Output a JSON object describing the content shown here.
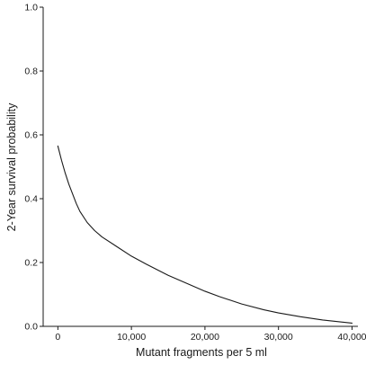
{
  "chart_data": {
    "type": "line",
    "title": "",
    "xlabel": "Mutant fragments per 5 ml",
    "ylabel": "2-Year survival probability",
    "xlim": [
      -2000,
      40800
    ],
    "ylim": [
      0,
      1.0
    ],
    "x_ticks": [
      0,
      10000,
      20000,
      30000,
      40000
    ],
    "x_tick_labels": [
      "0",
      "10,000",
      "20,000",
      "30,000",
      "40,000"
    ],
    "y_ticks": [
      0.0,
      0.2,
      0.4,
      0.6,
      0.8,
      1.0
    ],
    "y_tick_labels": [
      "0.0",
      "0.2",
      "0.4",
      "0.6",
      "0.8",
      "1.0"
    ],
    "grid": false,
    "line_color": "#1a1a1a",
    "series": [
      {
        "x": [
          0,
          500,
          1000,
          1500,
          2000,
          2500,
          3000,
          4000,
          5000,
          6000,
          8000,
          10000,
          12000,
          15000,
          18000,
          20000,
          22000,
          25000,
          28000,
          30000,
          33000,
          36000,
          38000,
          40000
        ],
        "values": [
          0.565,
          0.52,
          0.48,
          0.445,
          0.415,
          0.385,
          0.36,
          0.325,
          0.3,
          0.28,
          0.25,
          0.22,
          0.195,
          0.16,
          0.13,
          0.11,
          0.093,
          0.07,
          0.052,
          0.042,
          0.03,
          0.02,
          0.015,
          0.01
        ]
      }
    ]
  }
}
